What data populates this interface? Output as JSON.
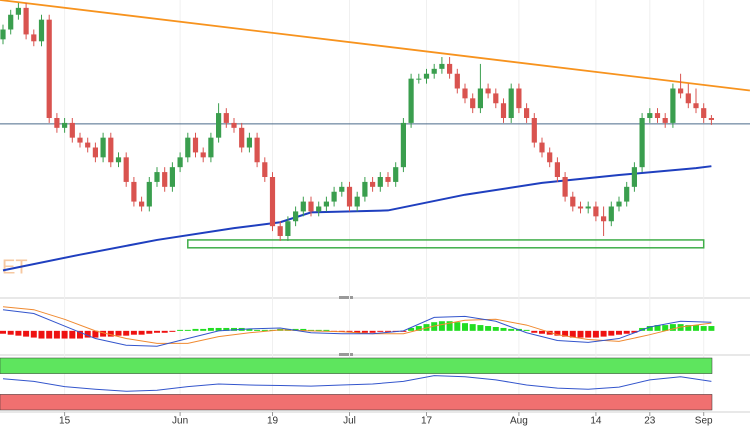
{
  "chart_data": {
    "type": "candlestick",
    "watermark": "ET",
    "ylim": [
      0,
      300
    ],
    "xlim": [
      -0.4,
      97
    ],
    "up_color": "#3a9e4e",
    "down_color": "#d9534f",
    "grid": true,
    "xticks": [
      {
        "value": 8,
        "label": "15"
      },
      {
        "value": 23,
        "label": "Jun"
      },
      {
        "value": 35,
        "label": "19"
      },
      {
        "value": 45,
        "label": "Jul"
      },
      {
        "value": 55,
        "label": "17"
      },
      {
        "value": 67,
        "label": "Aug"
      },
      {
        "value": 77,
        "label": "14"
      },
      {
        "value": 84,
        "label": "23"
      },
      {
        "value": 91,
        "label": "Sep"
      }
    ],
    "open": [
      260,
      270,
      285,
      292,
      265,
      258,
      280,
      180,
      170,
      175,
      160,
      155,
      150,
      140,
      160,
      135,
      140,
      115,
      95,
      90,
      115,
      125,
      110,
      130,
      140,
      160,
      145,
      140,
      160,
      185,
      175,
      170,
      150,
      160,
      135,
      120,
      70,
      60,
      75,
      85,
      95,
      85,
      90,
      95,
      105,
      110,
      90,
      100,
      115,
      110,
      120,
      115,
      130,
      175,
      220,
      220,
      225,
      230,
      235,
      225,
      210,
      200,
      190,
      210,
      205,
      195,
      180,
      210,
      190,
      180,
      155,
      145,
      135,
      120,
      100,
      90,
      88,
      90,
      80,
      75,
      90,
      95,
      110,
      130,
      180,
      185,
      180,
      175,
      210,
      205,
      195,
      190,
      180
    ],
    "high": [
      275,
      290,
      297,
      297,
      270,
      285,
      285,
      185,
      180,
      180,
      165,
      160,
      155,
      165,
      165,
      145,
      145,
      120,
      100,
      120,
      130,
      130,
      135,
      145,
      165,
      165,
      150,
      165,
      195,
      190,
      180,
      175,
      165,
      165,
      140,
      125,
      75,
      80,
      90,
      100,
      100,
      95,
      100,
      110,
      115,
      115,
      105,
      120,
      120,
      125,
      125,
      135,
      180,
      225,
      225,
      230,
      235,
      242,
      242,
      230,
      215,
      205,
      235,
      215,
      210,
      200,
      215,
      215,
      195,
      185,
      160,
      150,
      140,
      125,
      105,
      95,
      95,
      95,
      90,
      95,
      100,
      115,
      135,
      185,
      190,
      190,
      185,
      215,
      225,
      215,
      210,
      195,
      183
    ],
    "low": [
      255,
      265,
      280,
      260,
      253,
      253,
      175,
      165,
      165,
      155,
      150,
      145,
      135,
      135,
      130,
      130,
      110,
      90,
      85,
      85,
      110,
      105,
      105,
      125,
      135,
      140,
      135,
      135,
      155,
      170,
      165,
      145,
      145,
      130,
      115,
      65,
      55,
      55,
      70,
      80,
      80,
      80,
      85,
      90,
      100,
      85,
      85,
      95,
      105,
      105,
      110,
      110,
      125,
      170,
      215,
      215,
      220,
      225,
      220,
      205,
      195,
      185,
      185,
      200,
      190,
      175,
      175,
      185,
      175,
      150,
      140,
      130,
      115,
      95,
      85,
      83,
      83,
      75,
      60,
      70,
      85,
      90,
      105,
      125,
      175,
      175,
      170,
      170,
      200,
      190,
      185,
      175,
      173
    ],
    "close": [
      270,
      285,
      292,
      265,
      258,
      280,
      180,
      170,
      175,
      160,
      155,
      150,
      140,
      160,
      135,
      140,
      115,
      95,
      90,
      115,
      125,
      110,
      130,
      140,
      160,
      145,
      140,
      160,
      185,
      175,
      170,
      150,
      160,
      135,
      120,
      70,
      60,
      75,
      85,
      95,
      85,
      90,
      95,
      105,
      110,
      90,
      100,
      115,
      110,
      120,
      115,
      130,
      175,
      220,
      220,
      225,
      230,
      235,
      225,
      210,
      200,
      190,
      210,
      205,
      195,
      180,
      210,
      190,
      180,
      155,
      145,
      135,
      120,
      100,
      90,
      88,
      90,
      80,
      75,
      90,
      95,
      110,
      130,
      180,
      185,
      180,
      175,
      210,
      205,
      195,
      190,
      180,
      178
    ],
    "moving_average": {
      "color": "#1f3fbf",
      "x": [
        0,
        10,
        20,
        30,
        36,
        40,
        50,
        60,
        70,
        80,
        90,
        92
      ],
      "values": [
        25,
        41,
        56,
        68,
        74,
        84,
        86,
        102,
        114,
        122,
        129,
        131
      ]
    },
    "trend_line": {
      "color": "#f7931e",
      "x": [
        -0.4,
        97
      ],
      "values": [
        300,
        208
      ]
    },
    "level": {
      "color": "#4a6a8a",
      "value": 174
    },
    "zone": {
      "color": "#3fae49",
      "x": [
        24,
        91
      ],
      "values": [
        48,
        56
      ]
    },
    "macd": {
      "ylim": [
        -22,
        30
      ],
      "histogram": [
        -3,
        -4,
        -5,
        -6,
        -7,
        -8,
        -8,
        -8,
        -8,
        -8,
        -8,
        -7,
        -7,
        -6,
        -6,
        -5,
        -5,
        -4,
        -4,
        -3,
        -2,
        -2,
        -1,
        1,
        1,
        2,
        2,
        3,
        3,
        3,
        3,
        3,
        2,
        1,
        1,
        1,
        2,
        2,
        2,
        2,
        1,
        1,
        1,
        -1,
        -1,
        -1,
        -2,
        -2,
        -2,
        -1,
        -1,
        -1,
        -1,
        3,
        5,
        7,
        9,
        10,
        10,
        9,
        8,
        7,
        6,
        5,
        4,
        3,
        2,
        2,
        1,
        -2,
        -3,
        -4,
        -5,
        -6,
        -7,
        -7,
        -7,
        -7,
        -6,
        -5,
        -4,
        -3,
        -2,
        3,
        5,
        6,
        6,
        7,
        7,
        6,
        6,
        5,
        5
      ],
      "up_color": "#22dd22",
      "down_color": "#ee1111",
      "x": [
        0,
        4,
        8,
        12,
        16,
        20,
        24,
        28,
        32,
        36,
        40,
        44,
        48,
        52,
        56,
        60,
        64,
        68,
        72,
        76,
        80,
        84,
        88,
        92
      ],
      "line": {
        "color": "#3355cc",
        "values": [
          22,
          18,
          5,
          -8,
          -15,
          -16,
          -8,
          0,
          2,
          3,
          -2,
          -3,
          -3,
          0,
          14,
          15,
          10,
          -2,
          -10,
          -12,
          -8,
          4,
          10,
          9
        ]
      },
      "signal": {
        "color": "#f08a30",
        "values": [
          25,
          22,
          12,
          0,
          -8,
          -13,
          -13,
          -6,
          -2,
          1,
          0,
          -1,
          -3,
          -3,
          5,
          11,
          12,
          6,
          -4,
          -9,
          -11,
          -4,
          4,
          8
        ]
      }
    },
    "rsi": {
      "ylim": [
        0,
        100
      ],
      "upper_band": [
        70,
        100
      ],
      "upper_color": "#5ee55e",
      "lower_band": [
        0,
        30
      ],
      "lower_color": "#f07070",
      "x": [
        0,
        4,
        8,
        12,
        16,
        20,
        24,
        28,
        32,
        36,
        40,
        44,
        48,
        52,
        56,
        60,
        64,
        68,
        72,
        76,
        80,
        84,
        88,
        92
      ],
      "color": "#3355cc",
      "values": [
        60,
        55,
        45,
        40,
        36,
        38,
        45,
        50,
        48,
        47,
        46,
        48,
        50,
        55,
        66,
        64,
        58,
        48,
        42,
        40,
        44,
        58,
        64,
        55
      ]
    }
  }
}
